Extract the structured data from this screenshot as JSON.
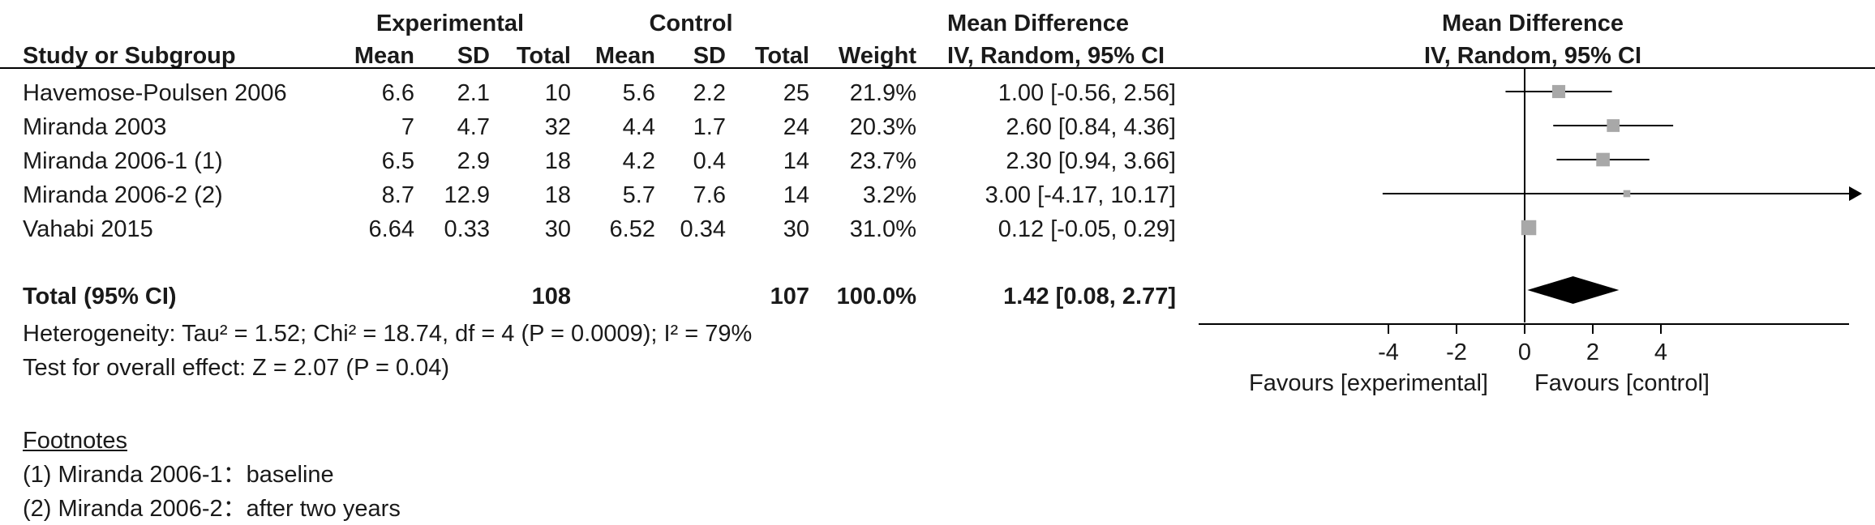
{
  "headers": {
    "study": "Study or Subgroup",
    "experimental": "Experimental",
    "control": "Control",
    "mean": "Mean",
    "sd": "SD",
    "total": "Total",
    "weight": "Weight",
    "md_title": "Mean Difference",
    "md_method": "IV, Random, 95% CI",
    "plot_title": "Mean Difference",
    "plot_method": "IV, Random, 95% CI"
  },
  "studies": [
    {
      "name": "Havemose-Poulsen 2006",
      "e_mean": "6.6",
      "e_sd": "2.1",
      "e_total": "10",
      "c_mean": "5.6",
      "c_sd": "2.2",
      "c_total": "25",
      "weight": "21.9%",
      "ci_text": "1.00 [-0.56, 2.56]"
    },
    {
      "name": "Miranda 2003",
      "e_mean": "7",
      "e_sd": "4.7",
      "e_total": "32",
      "c_mean": "4.4",
      "c_sd": "1.7",
      "c_total": "24",
      "weight": "20.3%",
      "ci_text": "2.60 [0.84, 4.36]"
    },
    {
      "name": "Miranda 2006-1 (1)",
      "e_mean": "6.5",
      "e_sd": "2.9",
      "e_total": "18",
      "c_mean": "4.2",
      "c_sd": "0.4",
      "c_total": "14",
      "weight": "23.7%",
      "ci_text": "2.30 [0.94, 3.66]"
    },
    {
      "name": "Miranda 2006-2 (2)",
      "e_mean": "8.7",
      "e_sd": "12.9",
      "e_total": "18",
      "c_mean": "5.7",
      "c_sd": "7.6",
      "c_total": "14",
      "weight": "3.2%",
      "ci_text": "3.00 [-4.17, 10.17]"
    },
    {
      "name": "Vahabi 2015",
      "e_mean": "6.64",
      "e_sd": "0.33",
      "e_total": "30",
      "c_mean": "6.52",
      "c_sd": "0.34",
      "c_total": "30",
      "weight": "31.0%",
      "ci_text": "0.12 [-0.05, 0.29]"
    }
  ],
  "total": {
    "label": "Total (95% CI)",
    "e_total": "108",
    "c_total": "107",
    "weight": "100.0%",
    "ci_text": "1.42 [0.08, 2.77]"
  },
  "heterogeneity": "Heterogeneity: Tau² = 1.52; Chi² = 18.74, df = 4 (P = 0.0009); I² = 79%",
  "overall_effect": "Test for overall effect: Z = 2.07 (P = 0.04)",
  "footnotes": {
    "title": "Footnotes",
    "items": [
      "(1) Miranda 2006-1：baseline",
      "(2) Miranda 2006-2：after two years"
    ]
  },
  "axis": {
    "favours_left": "Favours [experimental]",
    "favours_right": "Favours [control]"
  },
  "chart_data": {
    "type": "forest",
    "xlim": [
      -4,
      4
    ],
    "xticks": [
      -4,
      -2,
      0,
      2,
      4
    ],
    "xtick_labels": [
      "-4",
      "-2",
      "0",
      "2",
      "4"
    ],
    "study_estimates": [
      {
        "mean": 1.0,
        "lower": -0.56,
        "upper": 2.56,
        "weight": 21.9
      },
      {
        "mean": 2.6,
        "lower": 0.84,
        "upper": 4.36,
        "weight": 20.3
      },
      {
        "mean": 2.3,
        "lower": 0.94,
        "upper": 3.66,
        "weight": 23.7
      },
      {
        "mean": 3.0,
        "lower": -4.17,
        "upper": 10.17,
        "weight": 3.2
      },
      {
        "mean": 0.12,
        "lower": -0.05,
        "upper": 0.29,
        "weight": 31.0
      }
    ],
    "pooled": {
      "mean": 1.42,
      "lower": 0.08,
      "upper": 2.77
    },
    "marker_color": "#a8a8a8",
    "diamond_color": "#000000"
  }
}
